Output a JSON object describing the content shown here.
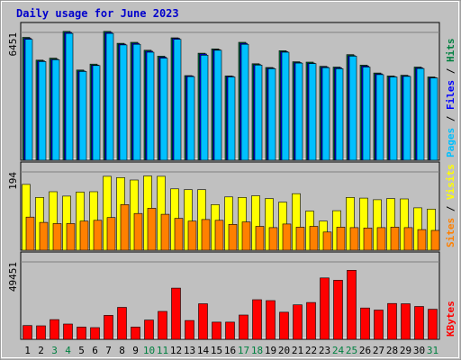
{
  "chart_data": {
    "type": "bar",
    "title": "Daily usage for June 2023",
    "x": [
      1,
      2,
      3,
      4,
      5,
      6,
      7,
      8,
      9,
      10,
      11,
      12,
      13,
      14,
      15,
      16,
      17,
      18,
      19,
      20,
      21,
      22,
      23,
      24,
      25,
      26,
      27,
      28,
      29,
      30,
      31
    ],
    "weekend_days": [
      3,
      4,
      10,
      11,
      17,
      18,
      24,
      25,
      31
    ],
    "colors": {
      "title": "#0000cc",
      "hits": "#008040",
      "files": "#0000ff",
      "pages": "#00c0ff",
      "visits": "#ffff00",
      "sites": "#ff8000",
      "kbytes": "#ff0000",
      "weekend": "#008040",
      "weekday": "#000000",
      "background": "#c0c0c0"
    },
    "panels": [
      {
        "id": "top",
        "ymax_label": "6451",
        "ymax": 6451,
        "right_label": [
          "Pages",
          "Files",
          "Hits"
        ],
        "series": [
          {
            "name": "Hits",
            "values": [
              6200,
              5050,
              5150,
              6500,
              4550,
              4850,
              6500,
              5900,
              5950,
              5550,
              5250,
              6180,
              4270,
              5400,
              5620,
              4250,
              5950,
              4870,
              4680,
              5530,
              4970,
              4950,
              4740,
              4700,
              5330,
              4800,
              4400,
              4250,
              4290,
              4700,
              4200
            ]
          },
          {
            "name": "Files",
            "values": [
              6150,
              5010,
              5100,
              6450,
              4500,
              4800,
              6450,
              5860,
              5900,
              5500,
              5200,
              6150,
              4250,
              5360,
              5580,
              4230,
              5900,
              4830,
              4650,
              5480,
              4930,
              4900,
              4700,
              4660,
              5280,
              4750,
              4360,
              4220,
              4250,
              4660,
              4170
            ]
          },
          {
            "name": "Pages",
            "values": [
              6100,
              4980,
              5070,
              6400,
              4480,
              4780,
              6400,
              5820,
              5850,
              5450,
              5150,
              6100,
              4220,
              5300,
              5550,
              4200,
              5850,
              4800,
              4620,
              5450,
              4900,
              4880,
              4670,
              4620,
              5250,
              4700,
              4320,
              4200,
              4230,
              4630,
              4150
            ]
          }
        ]
      },
      {
        "id": "mid",
        "ymax_label": "194",
        "ymax": 194,
        "right_label": [
          "Sites",
          "Visits"
        ],
        "series": [
          {
            "name": "Visits",
            "values": [
              163,
              131,
              145,
              134,
              144,
              145,
              183,
              180,
              174,
              184,
              183,
              152,
              150,
              150,
              113,
              132,
              131,
              135,
              128,
              119,
              140,
              97,
              72,
              98,
              131,
              129,
              125,
              128,
              127,
              105,
              102
            ]
          },
          {
            "name": "Sites",
            "values": [
              82,
              69,
              66,
              66,
              72,
              74,
              81,
              113,
              91,
              104,
              89,
              79,
              72,
              76,
              74,
              64,
              70,
              59,
              56,
              65,
              57,
              59,
              45,
              57,
              56,
              55,
              56,
              57,
              56,
              51,
              49
            ]
          }
        ]
      },
      {
        "id": "bottom",
        "ymax_label": "49451",
        "ymax": 49451,
        "right_label": [
          "KBytes"
        ],
        "series": [
          {
            "name": "KBytes",
            "values": [
              8800,
              8600,
              12600,
              9800,
              7800,
              7500,
              15300,
              20400,
              7800,
              12300,
              17800,
              32700,
              12000,
              22700,
              11000,
              11000,
              15500,
              25300,
              24700,
              17300,
              22000,
              23500,
              39200,
              37700,
              44100,
              20000,
              18700,
              22900,
              22700,
              21000,
              19200
            ]
          }
        ]
      }
    ]
  }
}
